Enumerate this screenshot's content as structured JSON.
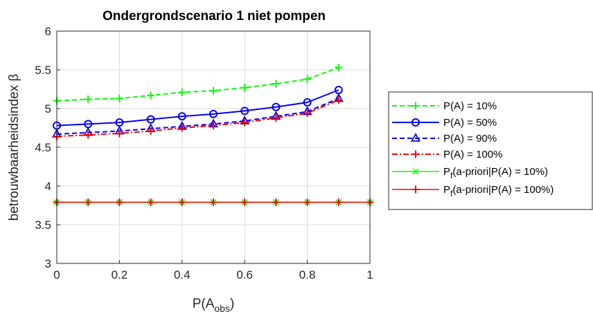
{
  "chart_data": {
    "type": "line",
    "title": "Ondergrondscenario 1 niet pompen",
    "xlabel_main": "P(A",
    "xlabel_sub": "obs",
    "xlabel_close": ")",
    "ylabel": "betrouwbaarheidsindex β",
    "xlim": [
      0,
      1
    ],
    "ylim": [
      3,
      6
    ],
    "xticks": [
      "0",
      "0.2",
      "0.4",
      "0.6",
      "0.8",
      "1"
    ],
    "yticks": [
      "3",
      "3.5",
      "4",
      "4.5",
      "5",
      "5.5",
      "6"
    ],
    "grid": true,
    "legend_placement": "outside-right",
    "x": [
      0,
      0.1,
      0.2,
      0.3,
      0.4,
      0.5,
      0.6,
      0.7,
      0.8,
      0.9
    ],
    "series": [
      {
        "name": "P(A) = 10%",
        "color": "#00ff00",
        "dash": "dashed",
        "marker": "plus",
        "values": [
          5.1,
          5.12,
          5.13,
          5.17,
          5.21,
          5.23,
          5.27,
          5.32,
          5.38,
          5.53
        ]
      },
      {
        "name": "P(A) = 50%",
        "color": "#0000ff",
        "dash": "solid",
        "marker": "circle",
        "values": [
          4.78,
          4.8,
          4.82,
          4.86,
          4.9,
          4.93,
          4.97,
          5.02,
          5.08,
          5.24
        ]
      },
      {
        "name": "P(A) = 90%",
        "color": "#0000ff",
        "dash": "dashed",
        "marker": "triangle",
        "values": [
          4.67,
          4.69,
          4.71,
          4.74,
          4.77,
          4.8,
          4.84,
          4.9,
          4.96,
          5.13
        ]
      },
      {
        "name": "P(A) = 100%",
        "color": "#ff0000",
        "dash": "dashdot",
        "marker": "plus",
        "values": [
          4.64,
          4.66,
          4.68,
          4.71,
          4.75,
          4.78,
          4.82,
          4.88,
          4.94,
          5.11
        ]
      },
      {
        "name_main": "P",
        "name_sub": "f",
        "name_rest": "(a-priori|P(A) = 10%)",
        "color": "#00ff00",
        "dash": "solid",
        "marker": "cross",
        "x": [
          0,
          0.1,
          0.2,
          0.3,
          0.4,
          0.5,
          0.6,
          0.7,
          0.8,
          0.9,
          1.0
        ],
        "values": [
          3.79,
          3.79,
          3.79,
          3.79,
          3.79,
          3.79,
          3.79,
          3.79,
          3.79,
          3.79,
          3.79
        ]
      },
      {
        "name_main": "P",
        "name_sub": "f",
        "name_rest": "(a-priori|P(A) = 100%)",
        "color": "#ff0000",
        "dash": "solid",
        "marker": "plus",
        "x": [
          0,
          0.1,
          0.2,
          0.3,
          0.4,
          0.5,
          0.6,
          0.7,
          0.8,
          0.9,
          1.0
        ],
        "values": [
          3.79,
          3.79,
          3.79,
          3.79,
          3.79,
          3.79,
          3.79,
          3.79,
          3.79,
          3.79,
          3.79
        ]
      }
    ]
  }
}
